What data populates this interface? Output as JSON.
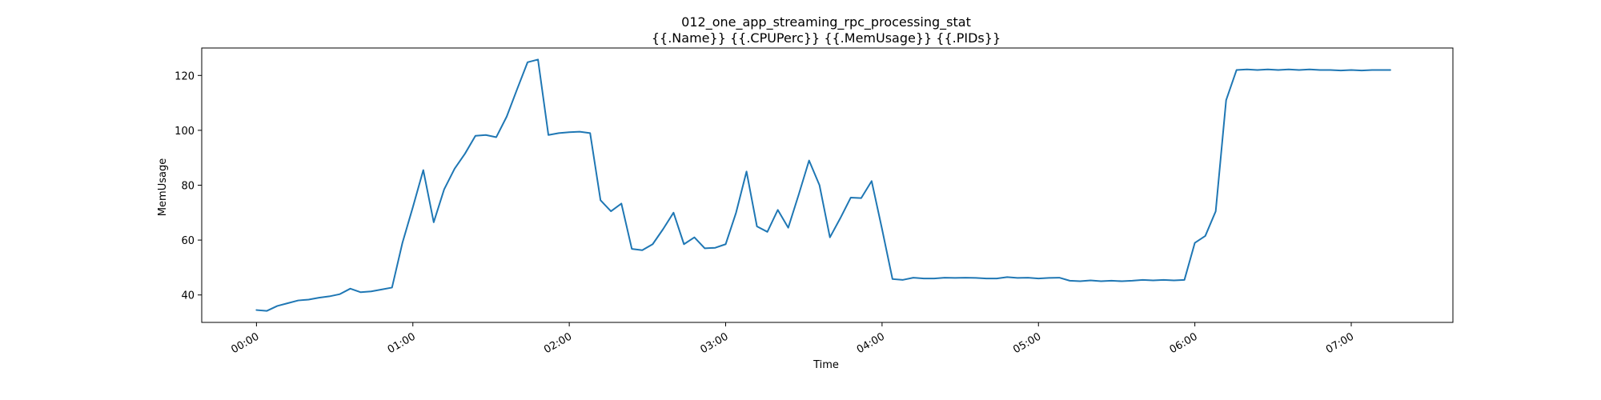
{
  "chart_data": {
    "type": "line",
    "title": "012_one_app_streaming_rpc_processing_stat",
    "subtitle": "{{.Name}} {{.CPUPerc}} {{.MemUsage}}  {{.PIDs}}",
    "xlabel": "Time",
    "ylabel": "MemUsage",
    "x_tick_labels": [
      "00:00",
      "01:00",
      "02:00",
      "03:00",
      "04:00",
      "05:00",
      "06:00",
      "07:00"
    ],
    "y_ticks": [
      40,
      60,
      80,
      100,
      120
    ],
    "xlim": [
      "-00:21",
      "07:39"
    ],
    "ylim": [
      30,
      130
    ],
    "grid": false,
    "line_color": "#1f77b4",
    "series": [
      {
        "x": [
          "00:00",
          "00:04",
          "00:08",
          "00:12",
          "00:16",
          "00:20",
          "00:24",
          "00:28",
          "00:32",
          "00:36",
          "00:40",
          "00:44",
          "00:48",
          "00:52",
          "00:56",
          "01:00",
          "01:04",
          "01:08",
          "01:12",
          "01:16",
          "01:20",
          "01:24",
          "01:28",
          "01:32",
          "01:36",
          "01:40",
          "01:44",
          "01:48",
          "01:52",
          "01:56",
          "02:00",
          "02:04",
          "02:08",
          "02:12",
          "02:16",
          "02:20",
          "02:24",
          "02:28",
          "02:32",
          "02:36",
          "02:40",
          "02:44",
          "02:48",
          "02:52",
          "02:56",
          "03:00",
          "03:04",
          "03:08",
          "03:12",
          "03:16",
          "03:20",
          "03:24",
          "03:28",
          "03:32",
          "03:36",
          "03:40",
          "03:44",
          "03:48",
          "03:52",
          "03:56",
          "04:00",
          "04:04",
          "04:08",
          "04:12",
          "04:16",
          "04:20",
          "04:24",
          "04:28",
          "04:32",
          "04:36",
          "04:40",
          "04:44",
          "04:48",
          "04:52",
          "04:56",
          "05:00",
          "05:04",
          "05:08",
          "05:12",
          "05:16",
          "05:20",
          "05:24",
          "05:28",
          "05:32",
          "05:36",
          "05:40",
          "05:44",
          "05:48",
          "05:52",
          "05:56",
          "06:00",
          "06:04",
          "06:08",
          "06:12",
          "06:16",
          "06:20",
          "06:24",
          "06:28",
          "06:32",
          "06:36",
          "06:40",
          "06:44",
          "06:48",
          "06:52",
          "06:56",
          "07:00",
          "07:04",
          "07:08",
          "07:12",
          "07:15"
        ],
        "y": [
          34.5,
          34.2,
          36.0,
          37.0,
          38.0,
          38.3,
          39.0,
          39.5,
          40.3,
          42.3,
          41.0,
          41.3,
          42.0,
          42.7,
          59.0,
          72.0,
          85.5,
          66.5,
          78.5,
          86.0,
          91.5,
          98.0,
          98.3,
          97.5,
          105.0,
          115.0,
          124.8,
          125.8,
          98.3,
          99.0,
          99.3,
          99.5,
          99.0,
          74.5,
          70.5,
          73.3,
          56.8,
          56.3,
          58.5,
          64.0,
          70.0,
          58.5,
          61.0,
          57.0,
          57.2,
          58.5,
          70.0,
          85.0,
          65.0,
          63.0,
          71.0,
          64.5,
          76.5,
          89.0,
          80.0,
          61.0,
          68.0,
          75.5,
          75.3,
          81.5,
          64.0,
          45.8,
          45.5,
          46.3,
          46.0,
          46.0,
          46.3,
          46.2,
          46.3,
          46.2,
          46.0,
          46.0,
          46.5,
          46.2,
          46.3,
          46.0,
          46.2,
          46.3,
          45.2,
          45.0,
          45.3,
          45.0,
          45.2,
          45.0,
          45.2,
          45.5,
          45.3,
          45.5,
          45.3,
          45.5,
          59.0,
          61.5,
          70.5,
          111.0,
          122.0,
          122.2,
          122.0,
          122.2,
          122.0,
          122.2,
          122.0,
          122.2,
          122.0,
          122.0,
          121.8,
          122.0,
          121.8,
          122.0,
          122.0,
          122.0
        ]
      }
    ]
  }
}
